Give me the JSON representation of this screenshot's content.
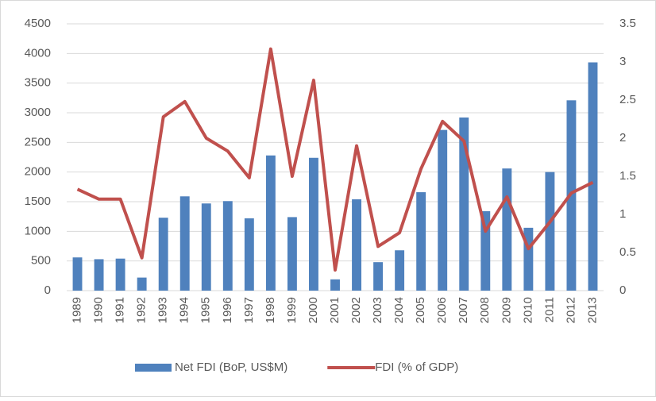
{
  "chart_data": {
    "type": "bar_line",
    "categories": [
      "1989",
      "1990",
      "1991",
      "1992",
      "1993",
      "1994",
      "1995",
      "1996",
      "1997",
      "1998",
      "1999",
      "2000",
      "2001",
      "2002",
      "2003",
      "2004",
      "2005",
      "2006",
      "2007",
      "2008",
      "2009",
      "2010",
      "2011",
      "2012",
      "2013"
    ],
    "series": [
      {
        "name": "Net FDI (BoP, US$M)",
        "type": "bar",
        "color": "#4f81bd",
        "values": [
          560,
          530,
          540,
          220,
          1230,
          1590,
          1470,
          1510,
          1220,
          2280,
          1240,
          2240,
          190,
          1540,
          480,
          680,
          1660,
          2710,
          2920,
          1340,
          2060,
          1060,
          2000,
          3210,
          3850
        ]
      },
      {
        "name": "FDI (% of GDP)",
        "type": "line",
        "axis": "y2",
        "color": "#c0504d",
        "values": [
          1.33,
          1.2,
          1.2,
          0.43,
          2.28,
          2.48,
          2.0,
          1.83,
          1.48,
          3.17,
          1.5,
          2.76,
          0.27,
          1.9,
          0.58,
          0.76,
          1.6,
          2.22,
          1.96,
          0.78,
          1.23,
          0.55,
          0.9,
          1.28,
          1.42
        ]
      }
    ],
    "ylim": [
      0,
      4500
    ],
    "yticks": [
      0,
      500,
      1000,
      1500,
      2000,
      2500,
      3000,
      3500,
      4000,
      4500
    ],
    "y2lim": [
      0,
      3.5
    ],
    "y2ticks": [
      0,
      0.5,
      1,
      1.5,
      2,
      2.5,
      3,
      3.5
    ],
    "grid": true,
    "legend": "bottom"
  }
}
